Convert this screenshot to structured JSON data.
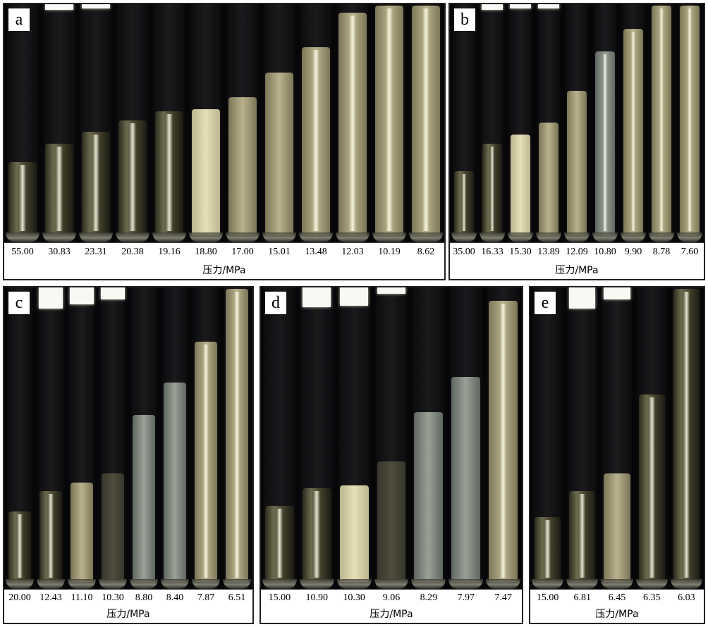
{
  "axis_title": "压力/MPa",
  "colors": {
    "background": "#07070a",
    "foam_light": "#e6dfb8",
    "foam_olive": "#a8a17c",
    "foam_gray": "#8e948a",
    "top_block": "#f8f8f4"
  },
  "panels": [
    {
      "letter": "a",
      "pressures": [
        "55.00",
        "30.83",
        "23.31",
        "20.38",
        "19.16",
        "18.80",
        "17.00",
        "15.01",
        "13.48",
        "12.03",
        "10.19",
        "8.62"
      ],
      "fill_levels": [
        0.32,
        0.4,
        0.45,
        0.5,
        0.54,
        0.55,
        0.6,
        0.71,
        0.82,
        0.97,
        1.0,
        1.0
      ],
      "tones": [
        "streak",
        "streak",
        "streak",
        "streak",
        "streak",
        "light",
        "olive",
        "olive",
        "olive",
        "olive",
        "olive",
        "olive"
      ]
    },
    {
      "letter": "b",
      "pressures": [
        "35.00",
        "16.33",
        "15.30",
        "13.89",
        "12.09",
        "10.80",
        "9.90",
        "8.78",
        "7.60"
      ],
      "fill_levels": [
        0.28,
        0.4,
        0.44,
        0.49,
        0.63,
        0.8,
        0.9,
        1.0,
        1.0
      ],
      "tones": [
        "streak",
        "streak",
        "light",
        "olive",
        "olive",
        "gray",
        "olive",
        "olive",
        "olive"
      ]
    },
    {
      "letter": "c",
      "pressures": [
        "20.00",
        "12.43",
        "11.10",
        "10.30",
        "8.80",
        "8.40",
        "7.87",
        "6.51"
      ],
      "fill_levels": [
        0.24,
        0.31,
        0.34,
        0.37,
        0.57,
        0.68,
        0.82,
        1.0
      ],
      "tones": [
        "streak",
        "streak",
        "olive",
        "dark",
        "gray",
        "gray",
        "olive",
        "olive"
      ]
    },
    {
      "letter": "d",
      "pressures": [
        "15.00",
        "10.90",
        "10.30",
        "9.06",
        "8.29",
        "7.97",
        "7.47"
      ],
      "fill_levels": [
        0.26,
        0.32,
        0.33,
        0.41,
        0.58,
        0.7,
        0.96
      ],
      "tones": [
        "streak",
        "streak",
        "light",
        "dark",
        "gray",
        "gray",
        "olive"
      ]
    },
    {
      "letter": "e",
      "pressures": [
        "15.00",
        "6.81",
        "6.45",
        "6.35",
        "6.03"
      ],
      "fill_levels": [
        0.22,
        0.31,
        0.37,
        0.64,
        1.0
      ],
      "tones": [
        "streak",
        "streak",
        "olive",
        "streak",
        "streak"
      ]
    }
  ]
}
